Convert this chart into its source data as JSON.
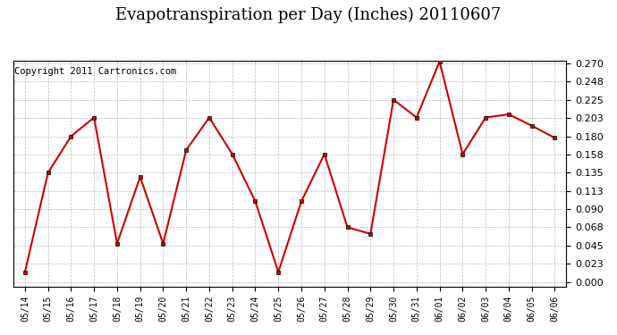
{
  "title": "Evapotranspiration per Day (Inches) 20110607",
  "copyright": "Copyright 2011 Cartronics.com",
  "dates": [
    "05/14",
    "05/15",
    "05/16",
    "05/17",
    "05/18",
    "05/19",
    "05/20",
    "05/21",
    "05/22",
    "05/23",
    "05/24",
    "05/25",
    "05/26",
    "05/27",
    "05/28",
    "05/29",
    "05/30",
    "05/31",
    "06/01",
    "06/02",
    "06/03",
    "06/04",
    "06/05",
    "06/06"
  ],
  "values": [
    0.013,
    0.135,
    0.18,
    0.203,
    0.048,
    0.13,
    0.048,
    0.163,
    0.203,
    0.158,
    0.1,
    0.013,
    0.1,
    0.158,
    0.068,
    0.06,
    0.225,
    0.203,
    0.272,
    0.158,
    0.203,
    0.207,
    0.193,
    0.178
  ],
  "line_color": "#cc0000",
  "marker": "s",
  "marker_size": 3,
  "marker_color": "#000000",
  "background_color": "#ffffff",
  "plot_bg_color": "#ffffff",
  "grid_color": "#bbbbbb",
  "ymin": 0.0,
  "ymax": 0.27,
  "yticks": [
    0.0,
    0.023,
    0.045,
    0.068,
    0.09,
    0.113,
    0.135,
    0.158,
    0.18,
    0.203,
    0.225,
    0.248,
    0.27
  ],
  "title_fontsize": 13,
  "copyright_fontsize": 7.5
}
